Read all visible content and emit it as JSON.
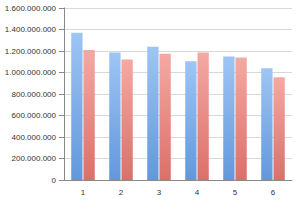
{
  "chart_data": {
    "type": "bar",
    "categories": [
      "1",
      "2",
      "3",
      "4",
      "5",
      "6"
    ],
    "series": [
      {
        "color": "#6aa5ee",
        "values": [
          1370000000,
          1185000000,
          1240000000,
          1105000000,
          1150000000,
          1040000000
        ]
      },
      {
        "color": "#ee7a72",
        "values": [
          1210000000,
          1120000000,
          1175000000,
          1185000000,
          1140000000,
          955000000
        ]
      }
    ],
    "ylim": [
      0,
      1600000000
    ],
    "yticks": [
      0,
      {
        "value": 200000000,
        "label": "200.000.000"
      },
      {
        "value": 400000000,
        "label": "400.000.000"
      },
      {
        "value": 600000000,
        "label": "600.000.000"
      },
      {
        "value": 800000000,
        "label": "800.000.000"
      },
      {
        "value": 1000000000,
        "label": "1.000.000.000"
      },
      {
        "value": 1200000000,
        "label": "1.200.000.000"
      },
      {
        "value": 1400000000,
        "label": "1.400.000.000"
      },
      {
        "value": 1600000000,
        "label": "1.600.000.000"
      }
    ],
    "grid": true
  }
}
